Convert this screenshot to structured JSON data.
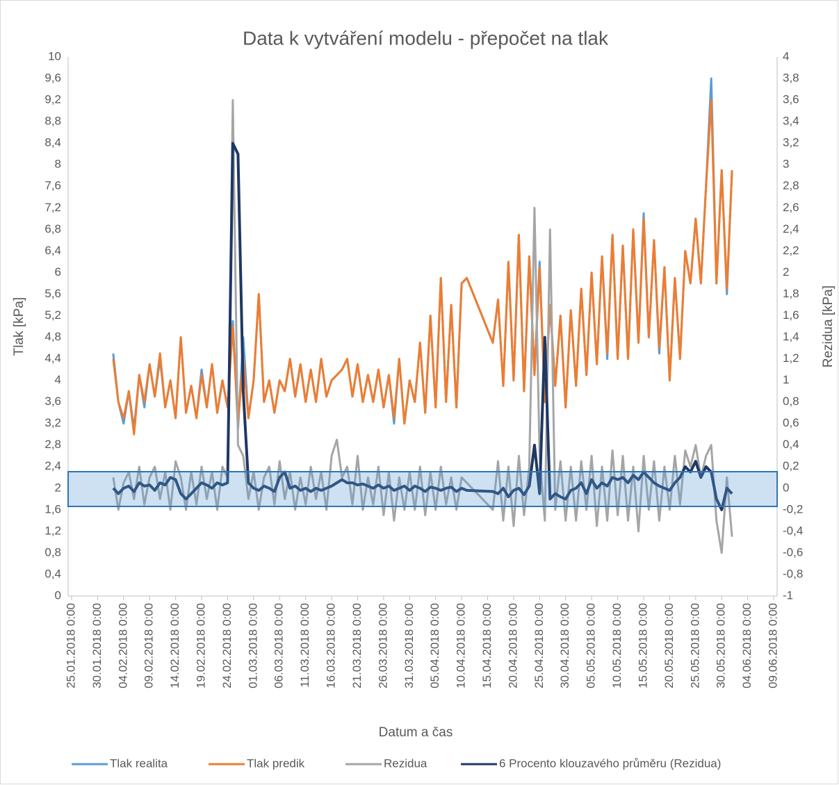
{
  "chart_data": {
    "type": "line",
    "title": "Data k vytváření modelu - přepočet na tlak",
    "x_label": "Datum a čas",
    "y_label": "Tlak [kPa]",
    "y2_label": "Rezidua [kPa]",
    "legend": "bottom",
    "grid": false,
    "xlim": [
      "2018-01-25",
      "2018-06-09"
    ],
    "xticks": [
      {
        "value": "2018-01-25",
        "label": "25.01.2018 0:00"
      },
      {
        "value": "2018-01-30",
        "label": "30.01.2018 0:00"
      },
      {
        "value": "2018-02-04",
        "label": "04.02.2018 0:00"
      },
      {
        "value": "2018-02-09",
        "label": "09.02.2018 0:00"
      },
      {
        "value": "2018-02-14",
        "label": "14.02.2018 0:00"
      },
      {
        "value": "2018-02-19",
        "label": "19.02.2018 0:00"
      },
      {
        "value": "2018-02-24",
        "label": "24.02.2018 0:00"
      },
      {
        "value": "2018-03-01",
        "label": "01.03.2018 0:00"
      },
      {
        "value": "2018-03-06",
        "label": "06.03.2018 0:00"
      },
      {
        "value": "2018-03-11",
        "label": "11.03.2018 0:00"
      },
      {
        "value": "2018-03-16",
        "label": "16.03.2018 0:00"
      },
      {
        "value": "2018-03-21",
        "label": "21.03.2018 0:00"
      },
      {
        "value": "2018-03-26",
        "label": "26.03.2018 0:00"
      },
      {
        "value": "2018-03-31",
        "label": "31.03.2018 0:00"
      },
      {
        "value": "2018-04-05",
        "label": "05.04.2018 0:00"
      },
      {
        "value": "2018-04-10",
        "label": "10.04.2018 0:00"
      },
      {
        "value": "2018-04-15",
        "label": "15.04.2018 0:00"
      },
      {
        "value": "2018-04-20",
        "label": "20.04.2018 0:00"
      },
      {
        "value": "2018-04-25",
        "label": "25.04.2018 0:00"
      },
      {
        "value": "2018-04-30",
        "label": "30.04.2018 0:00"
      },
      {
        "value": "2018-05-05",
        "label": "05.05.2018 0:00"
      },
      {
        "value": "2018-05-10",
        "label": "10.05.2018 0:00"
      },
      {
        "value": "2018-05-15",
        "label": "15.05.2018 0:00"
      },
      {
        "value": "2018-05-20",
        "label": "20.05.2018 0:00"
      },
      {
        "value": "2018-05-25",
        "label": "25.05.2018 0:00"
      },
      {
        "value": "2018-05-30",
        "label": "30.05.2018 0:00"
      },
      {
        "value": "2018-06-04",
        "label": "04.06.2018 0:00"
      },
      {
        "value": "2018-06-09",
        "label": "09.06.2018 0:00"
      }
    ],
    "ylim": [
      0,
      10
    ],
    "yticks": [
      0,
      {
        "value": 0.4,
        "label": "0,4"
      },
      {
        "value": 0.8,
        "label": "0,8"
      },
      {
        "value": 1.2,
        "label": "1,2"
      },
      {
        "value": 1.6,
        "label": "1,6"
      },
      2,
      {
        "value": 2.4,
        "label": "2,4"
      },
      {
        "value": 2.8,
        "label": "2,8"
      },
      {
        "value": 3.2,
        "label": "3,2"
      },
      {
        "value": 3.6,
        "label": "3,6"
      },
      4,
      {
        "value": 4.4,
        "label": "4,4"
      },
      {
        "value": 4.8,
        "label": "4,8"
      },
      {
        "value": 5.2,
        "label": "5,2"
      },
      {
        "value": 5.6,
        "label": "5,6"
      },
      6,
      {
        "value": 6.4,
        "label": "6,4"
      },
      {
        "value": 6.8,
        "label": "6,8"
      },
      {
        "value": 7.2,
        "label": "7,2"
      },
      {
        "value": 7.6,
        "label": "7,6"
      },
      8,
      {
        "value": 8.4,
        "label": "8,4"
      },
      {
        "value": 8.8,
        "label": "8,8"
      },
      {
        "value": 9.2,
        "label": "9,2"
      },
      {
        "value": 9.6,
        "label": "9,6"
      },
      10
    ],
    "y2lim": [
      -1,
      4
    ],
    "y2ticks": [
      -1,
      {
        "value": -0.8,
        "label": "-0,8"
      },
      {
        "value": -0.6,
        "label": "-0,6"
      },
      {
        "value": -0.4,
        "label": "-0,4"
      },
      {
        "value": -0.2,
        "label": "-0,2"
      },
      0,
      {
        "value": 0.2,
        "label": "0,2"
      },
      {
        "value": 0.4,
        "label": "0,4"
      },
      {
        "value": 0.6,
        "label": "0,6"
      },
      {
        "value": 0.8,
        "label": "0,8"
      },
      1,
      {
        "value": 1.2,
        "label": "1,2"
      },
      {
        "value": 1.4,
        "label": "1,4"
      },
      {
        "value": 1.6,
        "label": "1,6"
      },
      {
        "value": 1.8,
        "label": "1,8"
      },
      2,
      {
        "value": 2.2,
        "label": "2,2"
      },
      {
        "value": 2.4,
        "label": "2,4"
      },
      {
        "value": 2.6,
        "label": "2,6"
      },
      {
        "value": 2.8,
        "label": "2,8"
      },
      3,
      {
        "value": 3.2,
        "label": "3,2"
      },
      {
        "value": 3.4,
        "label": "3,4"
      },
      {
        "value": 3.6,
        "label": "3,6"
      },
      {
        "value": 3.8,
        "label": "3,8"
      },
      4
    ],
    "x": [
      "2018-02-02",
      "2018-02-03",
      "2018-02-04",
      "2018-02-05",
      "2018-02-06",
      "2018-02-07",
      "2018-02-08",
      "2018-02-09",
      "2018-02-10",
      "2018-02-11",
      "2018-02-12",
      "2018-02-13",
      "2018-02-14",
      "2018-02-15",
      "2018-02-16",
      "2018-02-17",
      "2018-02-18",
      "2018-02-19",
      "2018-02-20",
      "2018-02-21",
      "2018-02-22",
      "2018-02-23",
      "2018-02-24",
      "2018-02-25",
      "2018-02-26",
      "2018-02-27",
      "2018-02-28",
      "2018-03-01",
      "2018-03-02",
      "2018-03-03",
      "2018-03-04",
      "2018-03-05",
      "2018-03-06",
      "2018-03-07",
      "2018-03-08",
      "2018-03-09",
      "2018-03-10",
      "2018-03-11",
      "2018-03-12",
      "2018-03-13",
      "2018-03-14",
      "2018-03-15",
      "2018-03-16",
      "2018-03-17",
      "2018-03-18",
      "2018-03-19",
      "2018-03-20",
      "2018-03-21",
      "2018-03-22",
      "2018-03-23",
      "2018-03-24",
      "2018-03-25",
      "2018-03-26",
      "2018-03-27",
      "2018-03-28",
      "2018-03-29",
      "2018-03-30",
      "2018-03-31",
      "2018-04-01",
      "2018-04-02",
      "2018-04-03",
      "2018-04-04",
      "2018-04-05",
      "2018-04-06",
      "2018-04-07",
      "2018-04-08",
      "2018-04-09",
      "2018-04-10",
      "2018-04-11",
      "2018-04-16",
      "2018-04-17",
      "2018-04-18",
      "2018-04-19",
      "2018-04-20",
      "2018-04-21",
      "2018-04-22",
      "2018-04-23",
      "2018-04-24",
      "2018-04-25",
      "2018-04-26",
      "2018-04-27",
      "2018-04-28",
      "2018-04-29",
      "2018-04-30",
      "2018-05-01",
      "2018-05-02",
      "2018-05-03",
      "2018-05-04",
      "2018-05-05",
      "2018-05-06",
      "2018-05-07",
      "2018-05-08",
      "2018-05-09",
      "2018-05-10",
      "2018-05-11",
      "2018-05-12",
      "2018-05-13",
      "2018-05-14",
      "2018-05-15",
      "2018-05-16",
      "2018-05-17",
      "2018-05-18",
      "2018-05-19",
      "2018-05-20",
      "2018-05-21",
      "2018-05-22",
      "2018-05-23",
      "2018-05-24",
      "2018-05-25",
      "2018-05-26",
      "2018-05-27",
      "2018-05-28",
      "2018-05-29",
      "2018-05-30",
      "2018-05-31",
      "2018-06-01"
    ],
    "series": [
      {
        "name": "Tlak realita",
        "color": "#5b9bd5",
        "values": [
          4.5,
          3.6,
          3.2,
          3.8,
          3.1,
          4.1,
          3.5,
          4.3,
          3.7,
          4.4,
          3.5,
          4.0,
          3.3,
          4.8,
          3.4,
          3.9,
          3.3,
          4.2,
          3.5,
          4.3,
          3.4,
          4.0,
          3.5,
          5.1,
          3.1,
          4.8,
          3.3,
          4.0,
          5.6,
          3.6,
          4.0,
          3.4,
          4.0,
          3.8,
          4.4,
          3.7,
          4.3,
          3.6,
          4.2,
          3.6,
          4.4,
          3.7,
          4.0,
          4.1,
          4.2,
          4.4,
          3.7,
          4.3,
          3.6,
          4.1,
          3.6,
          4.2,
          3.5,
          4.1,
          3.2,
          4.4,
          3.2,
          4.0,
          3.6,
          4.7,
          3.4,
          5.2,
          3.5,
          5.9,
          3.6,
          5.4,
          3.5,
          5.8,
          5.9,
          4.7,
          5.5,
          3.9,
          6.2,
          4.0,
          6.7,
          3.8,
          6.3,
          4.1,
          6.2,
          3.6,
          5.4,
          3.9,
          5.2,
          3.5,
          5.3,
          3.9,
          5.7,
          4.1,
          6.0,
          4.3,
          6.3,
          4.4,
          6.7,
          4.4,
          6.5,
          4.4,
          6.8,
          4.7,
          7.1,
          4.8,
          6.6,
          4.5,
          6.1,
          4.0,
          5.9,
          4.4,
          6.4,
          5.8,
          7.0,
          5.8,
          7.6,
          9.6,
          5.8,
          7.9,
          5.6,
          7.9
        ]
      },
      {
        "name": "Tlak predik",
        "color": "#ed7d31",
        "values": [
          4.4,
          3.6,
          3.3,
          3.8,
          3.0,
          4.1,
          3.6,
          4.3,
          3.7,
          4.5,
          3.5,
          4.0,
          3.3,
          4.8,
          3.4,
          3.9,
          3.3,
          4.1,
          3.5,
          4.3,
          3.4,
          4.0,
          3.5,
          5.0,
          3.2,
          4.4,
          3.3,
          4.0,
          5.6,
          3.6,
          4.0,
          3.4,
          4.0,
          3.8,
          4.4,
          3.7,
          4.3,
          3.6,
          4.2,
          3.6,
          4.4,
          3.7,
          4.0,
          4.1,
          4.2,
          4.4,
          3.7,
          4.3,
          3.6,
          4.1,
          3.6,
          4.2,
          3.5,
          4.1,
          3.3,
          4.4,
          3.2,
          4.0,
          3.6,
          4.7,
          3.4,
          5.2,
          3.5,
          5.9,
          3.6,
          5.4,
          3.5,
          5.8,
          5.9,
          4.7,
          5.5,
          3.9,
          6.2,
          4.0,
          6.7,
          3.8,
          6.3,
          4.1,
          6.1,
          3.6,
          5.4,
          3.9,
          5.2,
          3.5,
          5.3,
          3.9,
          5.7,
          4.1,
          6.0,
          4.3,
          6.3,
          4.5,
          6.7,
          4.4,
          6.5,
          4.4,
          6.8,
          4.7,
          7.0,
          4.8,
          6.6,
          4.6,
          6.1,
          4.0,
          5.9,
          4.4,
          6.4,
          5.8,
          7.0,
          5.8,
          7.6,
          9.2,
          5.8,
          7.9,
          5.7,
          7.9
        ]
      },
      {
        "name": "Rezidua",
        "color": "#a5a5a5",
        "axis": "y2",
        "values": [
          0.1,
          -0.2,
          0.05,
          0.15,
          -0.1,
          0.2,
          -0.15,
          0.1,
          0.2,
          -0.1,
          0.15,
          -0.2,
          0.25,
          0.1,
          -0.2,
          0.15,
          -0.15,
          0.2,
          -0.1,
          0.15,
          -0.2,
          0.2,
          0.1,
          3.6,
          0.4,
          0.3,
          -0.1,
          0.15,
          -0.2,
          0.1,
          0.2,
          -0.15,
          0.25,
          -0.1,
          0.15,
          -0.2,
          0.1,
          -0.15,
          0.2,
          -0.1,
          0.15,
          -0.2,
          0.3,
          0.45,
          0.1,
          0.2,
          -0.15,
          0.3,
          -0.2,
          0.1,
          -0.15,
          0.2,
          -0.25,
          0.15,
          -0.3,
          0.1,
          -0.2,
          0.15,
          -0.2,
          0.2,
          -0.25,
          0.15,
          -0.2,
          0.2,
          -0.15,
          0.1,
          -0.2,
          0.1,
          0.05,
          -0.2,
          0.25,
          -0.3,
          0.2,
          -0.35,
          0.3,
          -0.25,
          0.2,
          2.6,
          0.3,
          -0.3,
          2.4,
          -0.2,
          0.25,
          -0.3,
          0.2,
          -0.3,
          0.25,
          -0.2,
          0.3,
          -0.35,
          0.2,
          -0.3,
          0.35,
          -0.25,
          0.3,
          -0.3,
          0.2,
          -0.4,
          0.3,
          -0.2,
          0.25,
          -0.3,
          0.2,
          -0.2,
          0.3,
          -0.15,
          0.35,
          0.2,
          0.4,
          0.1,
          0.3,
          0.4,
          -0.3,
          -0.6,
          0.1,
          -0.45
        ]
      },
      {
        "name": "6 Procento klouzavého průměru (Rezidua)",
        "color": "#1f3864",
        "axis": "y2",
        "values": [
          0,
          -0.05,
          0,
          0.02,
          -0.03,
          0.05,
          0.02,
          0.03,
          -0.02,
          0.05,
          0.03,
          0.1,
          0.08,
          -0.05,
          -0.1,
          -0.05,
          0,
          0.05,
          0.03,
          0,
          0.05,
          0.03,
          0.05,
          3.2,
          3.1,
          0.9,
          0.05,
          0,
          -0.02,
          0.02,
          0,
          -0.03,
          0.1,
          0.15,
          0,
          0.02,
          -0.02,
          0,
          -0.03,
          0,
          -0.02,
          0,
          0.02,
          0.05,
          0.08,
          0.05,
          0.05,
          0.03,
          0.04,
          0.02,
          0,
          0.03,
          0,
          0.02,
          -0.02,
          0,
          0.02,
          -0.02,
          0.02,
          0,
          -0.03,
          0.01,
          0,
          -0.02,
          0,
          0.01,
          -0.03,
          0,
          -0.02,
          -0.03,
          -0.05,
          0,
          -0.08,
          -0.02,
          0,
          -0.06,
          0.02,
          0.4,
          -0.05,
          1.4,
          -0.1,
          -0.05,
          -0.08,
          -0.1,
          -0.02,
          0,
          0.05,
          -0.05,
          0.08,
          0,
          0.05,
          0.02,
          0.1,
          0.08,
          0.1,
          0.05,
          0.12,
          0.08,
          0.15,
          0.1,
          0.05,
          0.02,
          0,
          -0.02,
          0.05,
          0.1,
          0.2,
          0.15,
          0.25,
          0.1,
          0.2,
          0.15,
          -0.1,
          -0.2,
          0,
          -0.05
        ]
      }
    ]
  }
}
